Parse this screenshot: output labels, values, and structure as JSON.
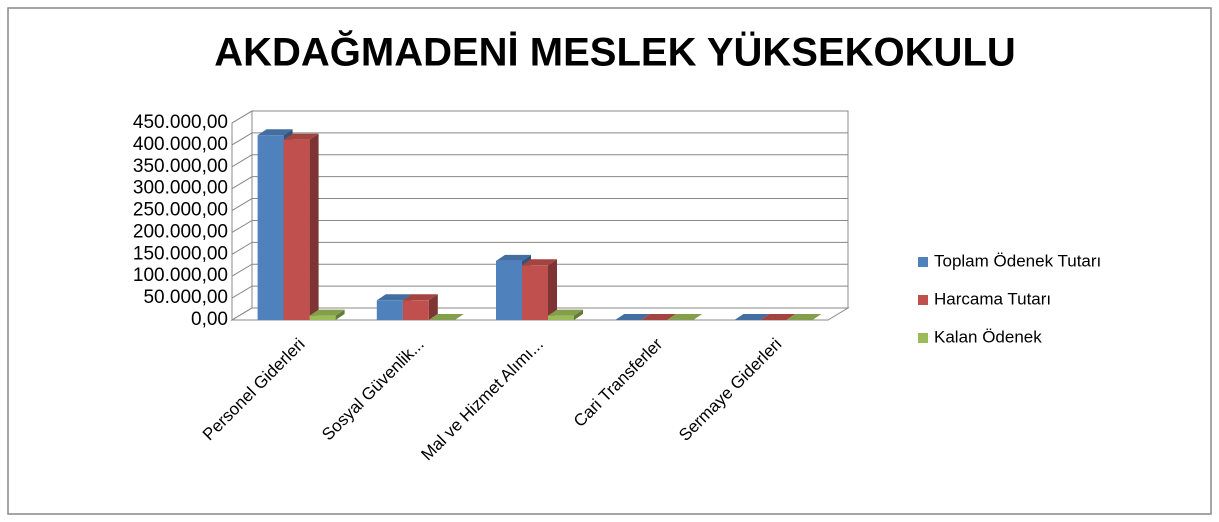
{
  "chart_data": {
    "type": "bar3d",
    "title": "AKDAĞMADENİ MESLEK YÜKSEKOKULU",
    "categories": [
      "Personel Giderleri",
      "Sosyal Güvenlik...",
      "Mal ve Hizmet Alımı...",
      "Cari Transferler",
      "Sermaye Giderleri"
    ],
    "series": [
      {
        "name": "Toplam Ödenek Tutarı",
        "color": "#4f81bd",
        "values": [
          422000,
          45000,
          135000,
          0,
          0
        ]
      },
      {
        "name": "Harcama Tutarı",
        "color": "#c0504d",
        "values": [
          412000,
          45000,
          125000,
          0,
          0
        ]
      },
      {
        "name": "Kalan Ödenek",
        "color": "#9bbb59",
        "values": [
          10000,
          0,
          10000,
          0,
          0
        ]
      }
    ],
    "ylim": [
      0,
      450000
    ],
    "yticks": [
      {
        "value": 0,
        "label": "0,00"
      },
      {
        "value": 50000,
        "label": "50.000,00"
      },
      {
        "value": 100000,
        "label": "100.000,00"
      },
      {
        "value": 150000,
        "label": "150.000,00"
      },
      {
        "value": 200000,
        "label": "200.000,00"
      },
      {
        "value": 250000,
        "label": "250.000,00"
      },
      {
        "value": 300000,
        "label": "300.000,00"
      },
      {
        "value": 350000,
        "label": "350.000,00"
      },
      {
        "value": 400000,
        "label": "400.000,00"
      },
      {
        "value": 450000,
        "label": "450.000,00"
      }
    ],
    "grid": true,
    "legend": "right"
  }
}
